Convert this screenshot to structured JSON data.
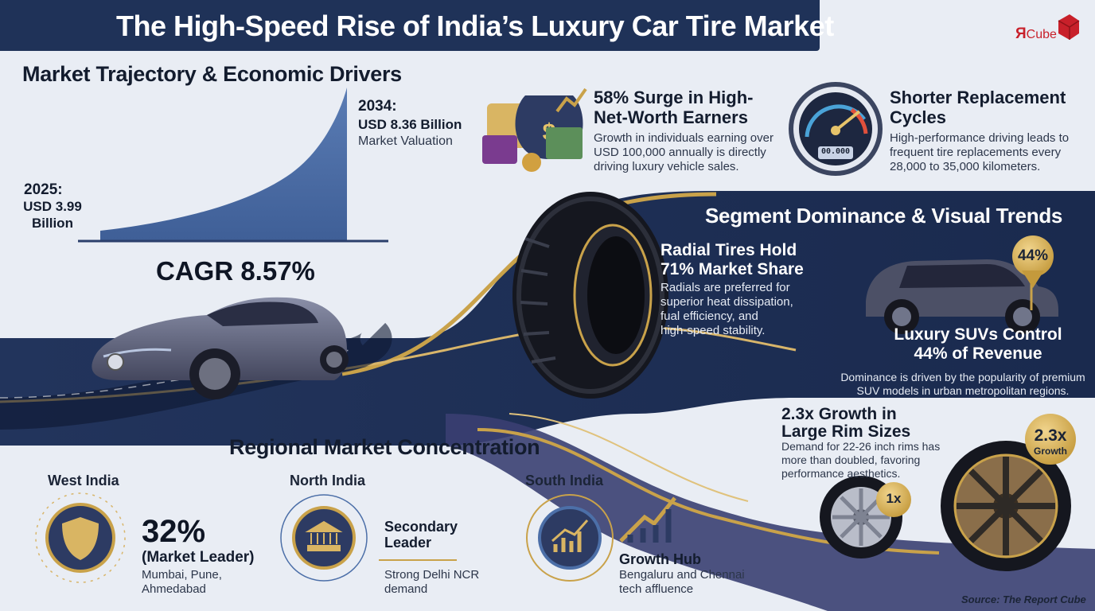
{
  "header": {
    "title": "The High-Speed Rise of India’s Luxury Car Tire Market",
    "logo_r": "Я",
    "logo_word": "Cube"
  },
  "trajectory": {
    "section_title": "Market Trajectory & Economic Drivers",
    "start_year": "2025:",
    "start_value_line1": "USD 3.99",
    "start_value_line2": "Billion",
    "end_year": "2034:",
    "end_value": "USD 8.36 Billion",
    "end_caption": "Market Valuation",
    "cagr": "CAGR 8.57%"
  },
  "hnwi": {
    "title_line1": "58% Surge in High-",
    "title_line2": "Net-Worth Earners",
    "desc_line1": "Growth in individuals earning over",
    "desc_line2": "USD 100,000 annually is directly",
    "desc_line3": "driving luxury vehicle sales."
  },
  "replacement": {
    "title_line1": "Shorter Replacement",
    "title_line2": "Cycles",
    "desc_line1": "High-performance driving leads to",
    "desc_line2": "frequent tire replacements every",
    "desc_line3": "28,000 to 35,000 kilometers.",
    "odometer": "00.000"
  },
  "segment": {
    "section_title": "Segment Dominance & Visual Trends",
    "radial_title_line1": "Radial Tires Hold",
    "radial_title_line2": "71% Market Share",
    "radial_desc_line1": "Radials are preferred for",
    "radial_desc_line2": "superior heat dissipation,",
    "radial_desc_line3": "fual efficiency, and",
    "radial_desc_line4": "high-speed stability.",
    "suv_badge": "44%",
    "suv_title_line1": "Luxury SUVs Control",
    "suv_title_line2": "44% of Revenue",
    "suv_desc_line1": "Dominance is driven by the popularity of premium",
    "suv_desc_line2": "SUV models in urban metropolitan regions."
  },
  "rims": {
    "title_line1": "2.3x Growth in",
    "title_line2": "Large Rim Sizes",
    "desc_line1": "Demand for 22-26 inch rims has",
    "desc_line2": "more than doubled, favoring",
    "desc_line3": "performance aesthetics.",
    "small_badge": "1x",
    "big_badge_value": "2.3x",
    "big_badge_label": "Growth"
  },
  "regional": {
    "section_title": "Regional Market Concentration",
    "west": {
      "name": "West India",
      "pct": "32%",
      "tag": "(Market Leader)",
      "cities_line1": "Mumbai, Pune,",
      "cities_line2": "Ahmedabad"
    },
    "north": {
      "name": "North India",
      "title_line1": "Secondary",
      "title_line2": "Leader",
      "desc_line1": "Strong Delhi NCR",
      "desc_line2": "demand"
    },
    "south": {
      "name": "South India",
      "title": "Growth Hub",
      "desc_line1": "Bengaluru and Chennai",
      "desc_line2": "tech affluence"
    }
  },
  "source": "Source: The Report Cube",
  "colors": {
    "navy": "#1f3258",
    "gold": "#c9a24a",
    "area_blue": "#4c6fa8",
    "background": "#e9edf4"
  }
}
